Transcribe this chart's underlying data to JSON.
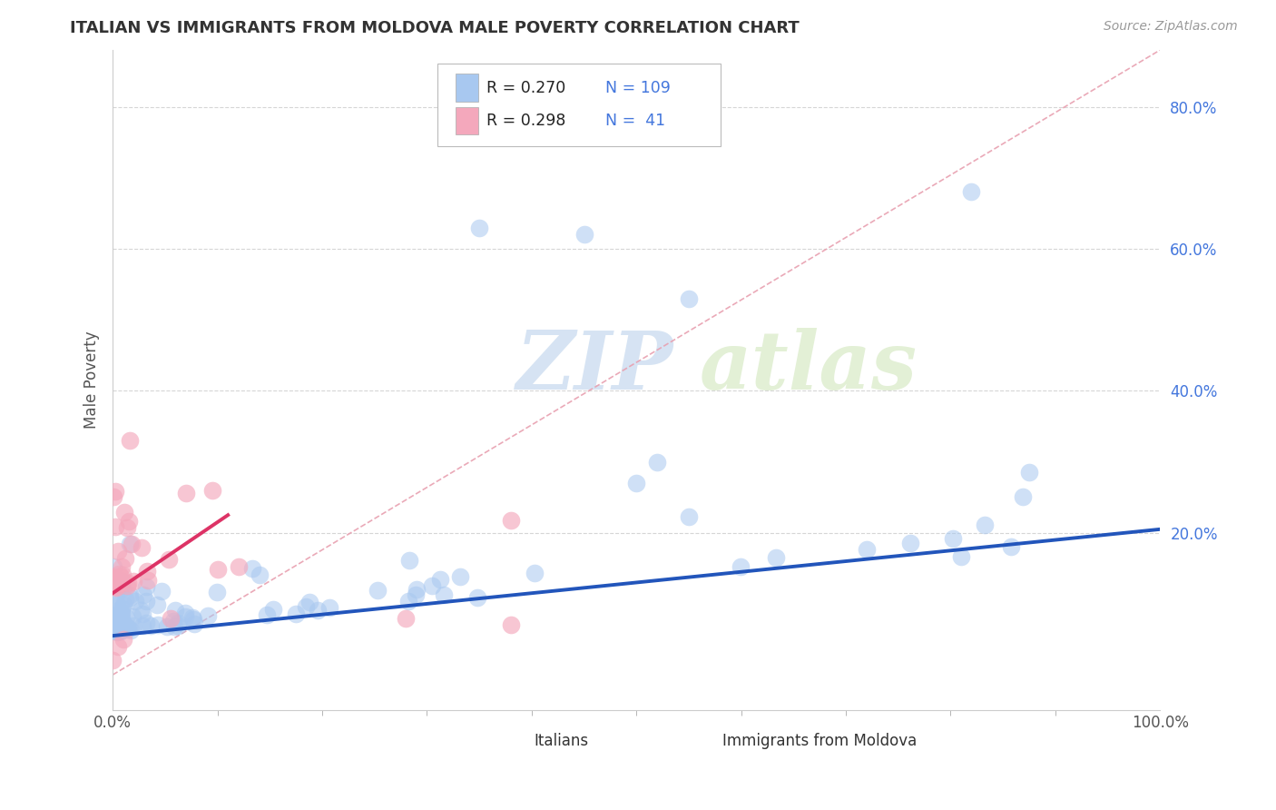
{
  "title": "ITALIAN VS IMMIGRANTS FROM MOLDOVA MALE POVERTY CORRELATION CHART",
  "source": "Source: ZipAtlas.com",
  "ylabel": "Male Poverty",
  "watermark_zip": "ZIP",
  "watermark_atlas": "atlas",
  "legend_r1": "R = 0.270",
  "legend_n1": "N = 109",
  "legend_r2": "R = 0.298",
  "legend_n2": "N =  41",
  "legend_label1": "Italians",
  "legend_label2": "Immigrants from Moldova",
  "italian_color": "#a8c8f0",
  "moldovan_color": "#f4a8bc",
  "italian_line_color": "#2255bb",
  "moldovan_line_color": "#dd3366",
  "diag_line_color": "#e8a0b0",
  "background_color": "#ffffff",
  "grid_color": "#cccccc",
  "ytick_vals": [
    0.0,
    0.2,
    0.4,
    0.6,
    0.8
  ],
  "ytick_labels": [
    "",
    "20.0%",
    "40.0%",
    "60.0%",
    "80.0%"
  ],
  "xlim": [
    0.0,
    1.0
  ],
  "ylim": [
    -0.05,
    0.88
  ],
  "blue_line_x": [
    0.0,
    1.0
  ],
  "blue_line_y": [
    0.055,
    0.205
  ],
  "pink_line_x": [
    0.0,
    0.11
  ],
  "pink_line_y": [
    0.115,
    0.225
  ],
  "diag_line_x": [
    0.0,
    1.0
  ],
  "diag_line_y": [
    0.0,
    0.88
  ]
}
